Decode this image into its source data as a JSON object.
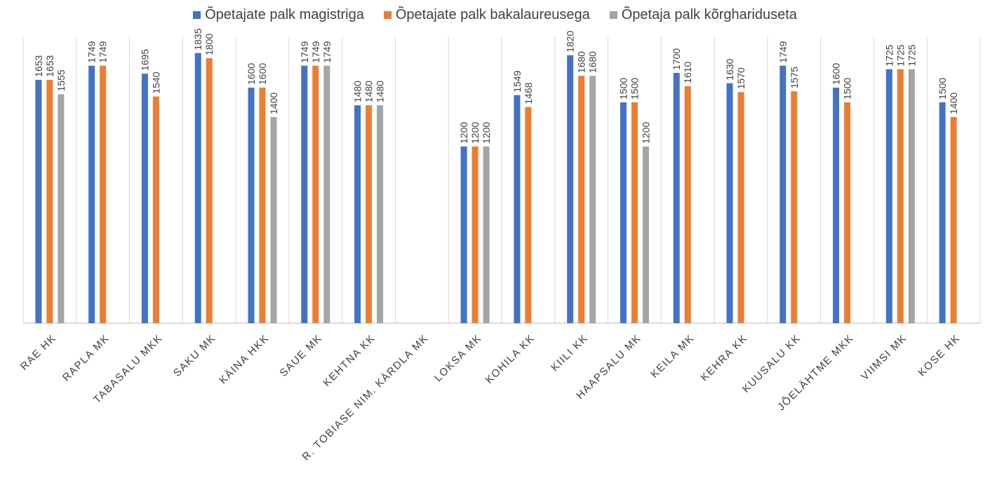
{
  "chart_data": {
    "type": "bar",
    "categories": [
      "RAE HK",
      "RAPLA MK",
      "TABASALU MKK",
      "SAKU MK",
      "KÄINA HKK",
      "SAUE MK",
      "KEHTNA KK",
      "R. TOBIASE NIM. KÄRDLA MK",
      "LOKSA MK",
      "KOHILA KK",
      "KIILI KK",
      "HAAPSALU MK",
      "KEILA MK",
      "KEHRA KK",
      "KUUSALU KK",
      "JÕELÄHTME MKK",
      "VIIMSI MK",
      "KOSE HK"
    ],
    "series": [
      {
        "name": "Õpetajate palk magistriga",
        "color": "#4472c4",
        "values": [
          1653,
          1749,
          1695,
          1835,
          1600,
          1749,
          1480,
          null,
          1200,
          1549,
          1820,
          1500,
          1700,
          1630,
          1749,
          1600,
          1725,
          1500
        ]
      },
      {
        "name": "Õpetajate palk bakalaureusega",
        "color": "#ed7d31",
        "values": [
          1653,
          1749,
          1540,
          1800,
          1600,
          1749,
          1480,
          null,
          1200,
          1468,
          1680,
          1500,
          1610,
          1570,
          1575,
          1500,
          1725,
          1400
        ]
      },
      {
        "name": "Õpetaja palk kõrghariduseta",
        "color": "#a5a5a5",
        "values": [
          1555,
          null,
          null,
          null,
          1400,
          1749,
          1480,
          null,
          1200,
          null,
          1680,
          1200,
          null,
          null,
          null,
          null,
          1725,
          null
        ]
      }
    ],
    "ylim": [
      0,
      1900
    ],
    "grid": "vertical separators between categories",
    "legend": "top-center",
    "data_labels": true,
    "title": "",
    "xlabel": "",
    "ylabel": ""
  }
}
